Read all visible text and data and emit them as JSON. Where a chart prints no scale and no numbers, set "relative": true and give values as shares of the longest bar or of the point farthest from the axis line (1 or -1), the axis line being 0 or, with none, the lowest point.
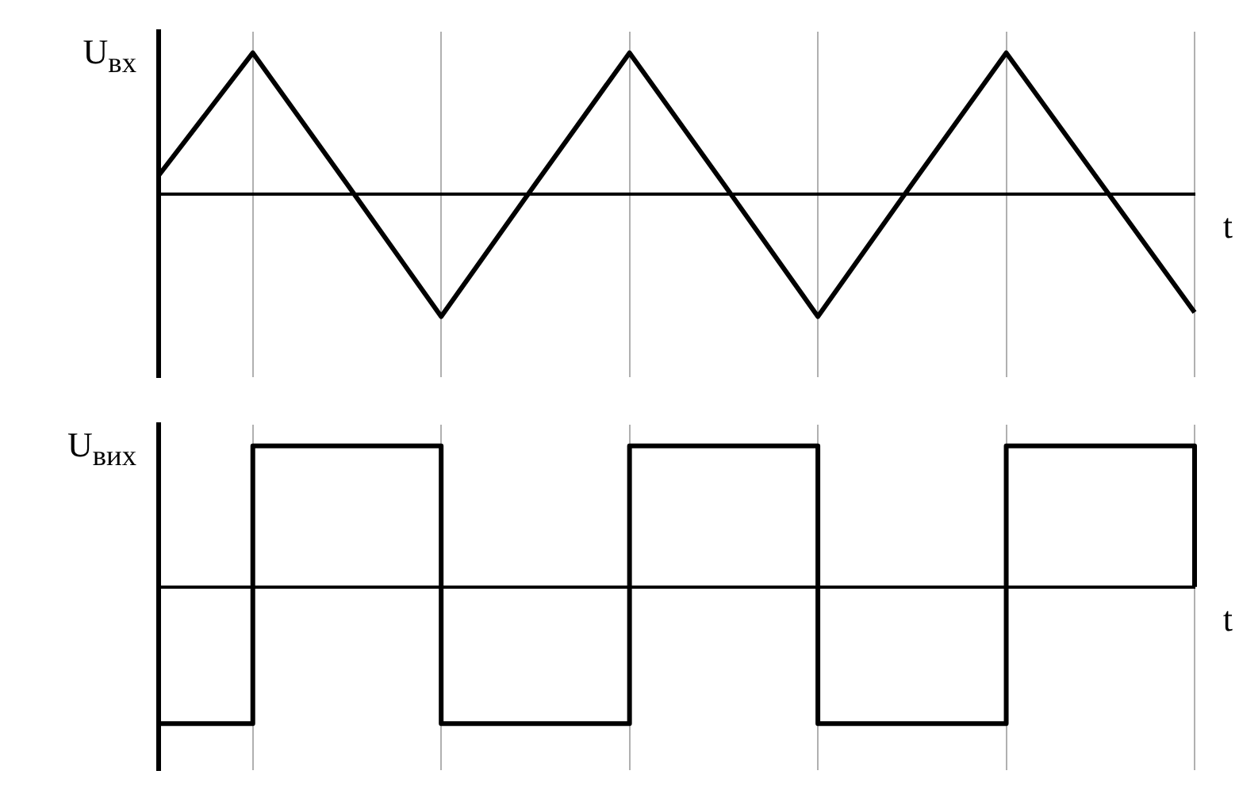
{
  "chart_data": [
    {
      "type": "line",
      "relative": true,
      "ylabel": "U$_{вх}$",
      "xlabel": "t",
      "grid": "x",
      "categories": [
        null,
        null,
        null,
        null,
        null,
        null,
        null,
        null,
        null,
        null,
        null,
        null
      ],
      "series": [
        {
          "color": "#000000",
          "values": [
            0.13,
            1,
            0.07,
            -0.87,
            0.07,
            1,
            0.07,
            -0.87,
            0.07,
            1,
            0.08,
            -0.84
          ]
        }
      ]
    },
    {
      "type": "step",
      "relative": true,
      "ylabel": "U$_{вих}$",
      "xlabel": "t",
      "grid": "x",
      "categories": [
        null,
        null,
        null,
        null,
        null,
        null,
        null,
        null,
        null,
        null,
        null,
        null
      ],
      "series": [
        {
          "color": "#000000",
          "values": [
            -0.97,
            1,
            1,
            -0.97,
            -0.97,
            1,
            1,
            -0.97,
            -0.97,
            1,
            1,
            0
          ]
        }
      ]
    }
  ]
}
